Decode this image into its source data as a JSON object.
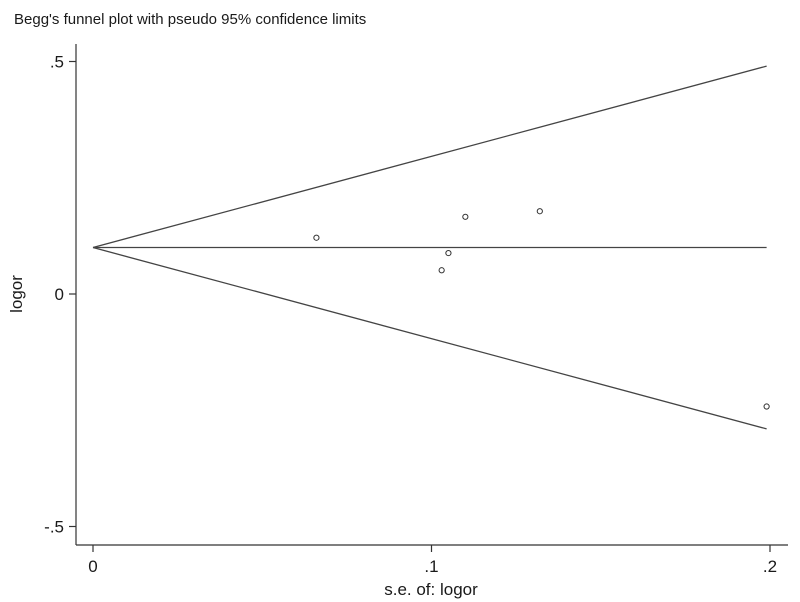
{
  "chart_data": {
    "type": "scatter",
    "title": "Begg's funnel plot with pseudo 95% confidence limits",
    "xlabel": "s.e. of: logor",
    "ylabel": "logor",
    "xlim": [
      0,
      0.2
    ],
    "ylim": [
      -0.5,
      0.5
    ],
    "x_ticks": [
      {
        "value": 0,
        "label": "0"
      },
      {
        "value": 0.1,
        "label": ".1"
      },
      {
        "value": 0.2,
        "label": ".2"
      }
    ],
    "y_ticks": [
      {
        "value": -0.5,
        "label": "-.5"
      },
      {
        "value": 0,
        "label": "0"
      },
      {
        "value": 0.5,
        "label": ".5"
      }
    ],
    "grid": false,
    "pooled_estimate": 0.1,
    "limit_max_se": 0.199,
    "points": [
      {
        "x": 0.066,
        "y": 0.121
      },
      {
        "x": 0.103,
        "y": 0.051
      },
      {
        "x": 0.105,
        "y": 0.088
      },
      {
        "x": 0.11,
        "y": 0.166
      },
      {
        "x": 0.132,
        "y": 0.178
      },
      {
        "x": 0.199,
        "y": -0.242
      }
    ]
  }
}
